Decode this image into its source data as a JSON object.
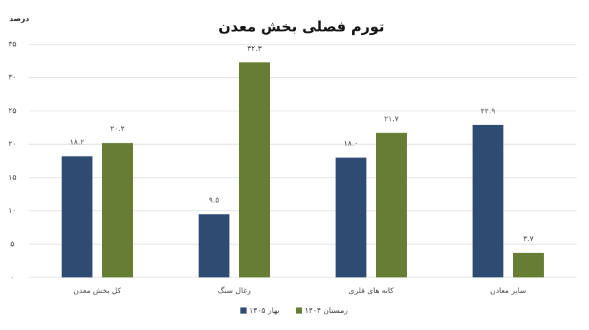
{
  "chart_data": {
    "type": "bar",
    "title": "تورم فصلی بخش معدن",
    "y_label": "درصد",
    "categories": [
      "کل بخش معدن",
      "زغال سنگ",
      "کانه های فلزی",
      "سایر معادن"
    ],
    "series": [
      {
        "name": "بهار ۱۴۰۵",
        "color": "#2e4b72",
        "values": [
          18.2,
          9.5,
          18.0,
          22.9
        ],
        "value_labels": [
          "۱۸.۲",
          "۹.۵",
          "۱۸.۰",
          "۲۲.۹"
        ]
      },
      {
        "name": "زمستان ۱۴۰۴",
        "color": "#667d33",
        "values": [
          20.2,
          32.3,
          21.7,
          3.7
        ],
        "value_labels": [
          "۲۰.۲",
          "۳۲.۳",
          "۲۱.۷",
          "۳.۷"
        ]
      }
    ],
    "ylim": [
      0,
      35
    ],
    "yticks": [
      {
        "value": 0,
        "label": "۰"
      },
      {
        "value": 5,
        "label": "۵"
      },
      {
        "value": 10,
        "label": "۱۰"
      },
      {
        "value": 15,
        "label": "۱۵"
      },
      {
        "value": 20,
        "label": "۲۰"
      },
      {
        "value": 25,
        "label": "۲۵"
      },
      {
        "value": 30,
        "label": "۳۰"
      },
      {
        "value": 35,
        "label": "۳۵"
      }
    ],
    "grid": true
  }
}
